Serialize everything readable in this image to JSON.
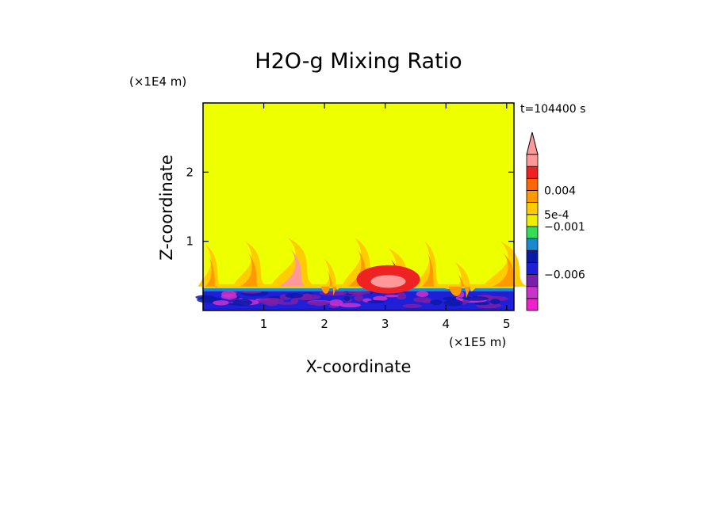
{
  "chart_data": {
    "type": "heatmap",
    "title": "H2O-g Mixing Ratio",
    "xlabel": "X-coordinate",
    "ylabel": "Z-coordinate",
    "x_scale_label": "(×1E5 m)",
    "y_scale_label": "(×1E4 m)",
    "time_label": "t=104400 s",
    "xlim": [
      0,
      5.12
    ],
    "ylim": [
      0,
      3.0
    ],
    "x_ticks": [
      "1",
      "2",
      "3",
      "4",
      "5"
    ],
    "x_tick_values": [
      1,
      2,
      3,
      4,
      5
    ],
    "y_ticks": [
      "1",
      "2"
    ],
    "y_tick_values": [
      1,
      2
    ],
    "colorbar": {
      "extend": "max",
      "levels_bottom_to_top": [
        {
          "color": "#ee22cc"
        },
        {
          "color": "#cc33cc"
        },
        {
          "color": "#7a1fa8"
        },
        {
          "color": "#1f1fd8"
        },
        {
          "color": "#0a1aa8"
        },
        {
          "color": "#1a8ad0"
        },
        {
          "color": "#33dd55"
        },
        {
          "color": "#eeee00"
        },
        {
          "color": "#ffcc00"
        },
        {
          "color": "#ff9900"
        },
        {
          "color": "#ff6600"
        },
        {
          "color": "#ee2222"
        },
        {
          "color": "#ff9999"
        }
      ],
      "labels": [
        {
          "text": "0.004",
          "value": 0.004
        },
        {
          "text": "5e-4",
          "value": 0.0005
        },
        {
          "text": "−0.001",
          "value": -0.001
        },
        {
          "text": "−0.006",
          "value": -0.006
        }
      ]
    },
    "field": {
      "background_color": "#eeff00",
      "boundary_layer_top": 0.3,
      "lower_layer_colors": [
        "#1f1fd8",
        "#0a1aa8",
        "#7a1fa8",
        "#cc33cc"
      ],
      "plumes": [
        {
          "x": 0.1,
          "top": 0.95,
          "color": "#ff9900"
        },
        {
          "x": 0.75,
          "top": 1.0,
          "color": "#ff9900"
        },
        {
          "x": 1.45,
          "top": 1.05,
          "color": "#ff9999"
        },
        {
          "x": 2.05,
          "top": 0.75,
          "color": "#ff9900"
        },
        {
          "x": 2.55,
          "top": 1.05,
          "color": "#ff9900"
        },
        {
          "x": 3.1,
          "top": 0.9,
          "color": "#ee2222"
        },
        {
          "x": 3.7,
          "top": 1.0,
          "color": "#ff9900"
        },
        {
          "x": 4.2,
          "top": 0.7,
          "color": "#ff9900"
        },
        {
          "x": 4.95,
          "top": 1.0,
          "color": "#ff9900"
        }
      ]
    }
  }
}
